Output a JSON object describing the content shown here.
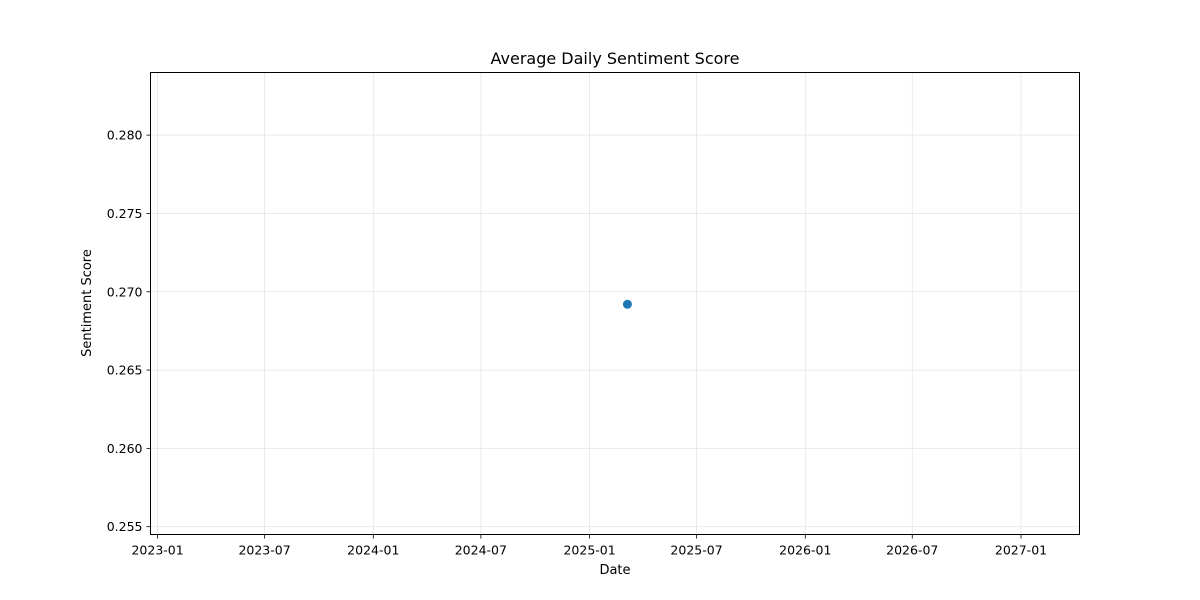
{
  "chart_data": {
    "type": "scatter",
    "title": "Average Daily Sentiment Score",
    "xlabel": "Date",
    "ylabel": "Sentiment Score",
    "x_axis_type": "date",
    "xlim": [
      "2022-12-20",
      "2027-04-10"
    ],
    "ylim": [
      0.2545,
      0.284
    ],
    "x_ticks": [
      "2023-01",
      "2023-07",
      "2024-01",
      "2024-07",
      "2025-01",
      "2025-07",
      "2026-01",
      "2026-07",
      "2027-01"
    ],
    "y_ticks": [
      "0.255",
      "0.260",
      "0.265",
      "0.270",
      "0.275",
      "0.280"
    ],
    "grid": true,
    "legend": "none",
    "points": [
      {
        "x": "2025-03-06",
        "y": 0.2692
      }
    ],
    "marker_color": "#1f77b4"
  }
}
